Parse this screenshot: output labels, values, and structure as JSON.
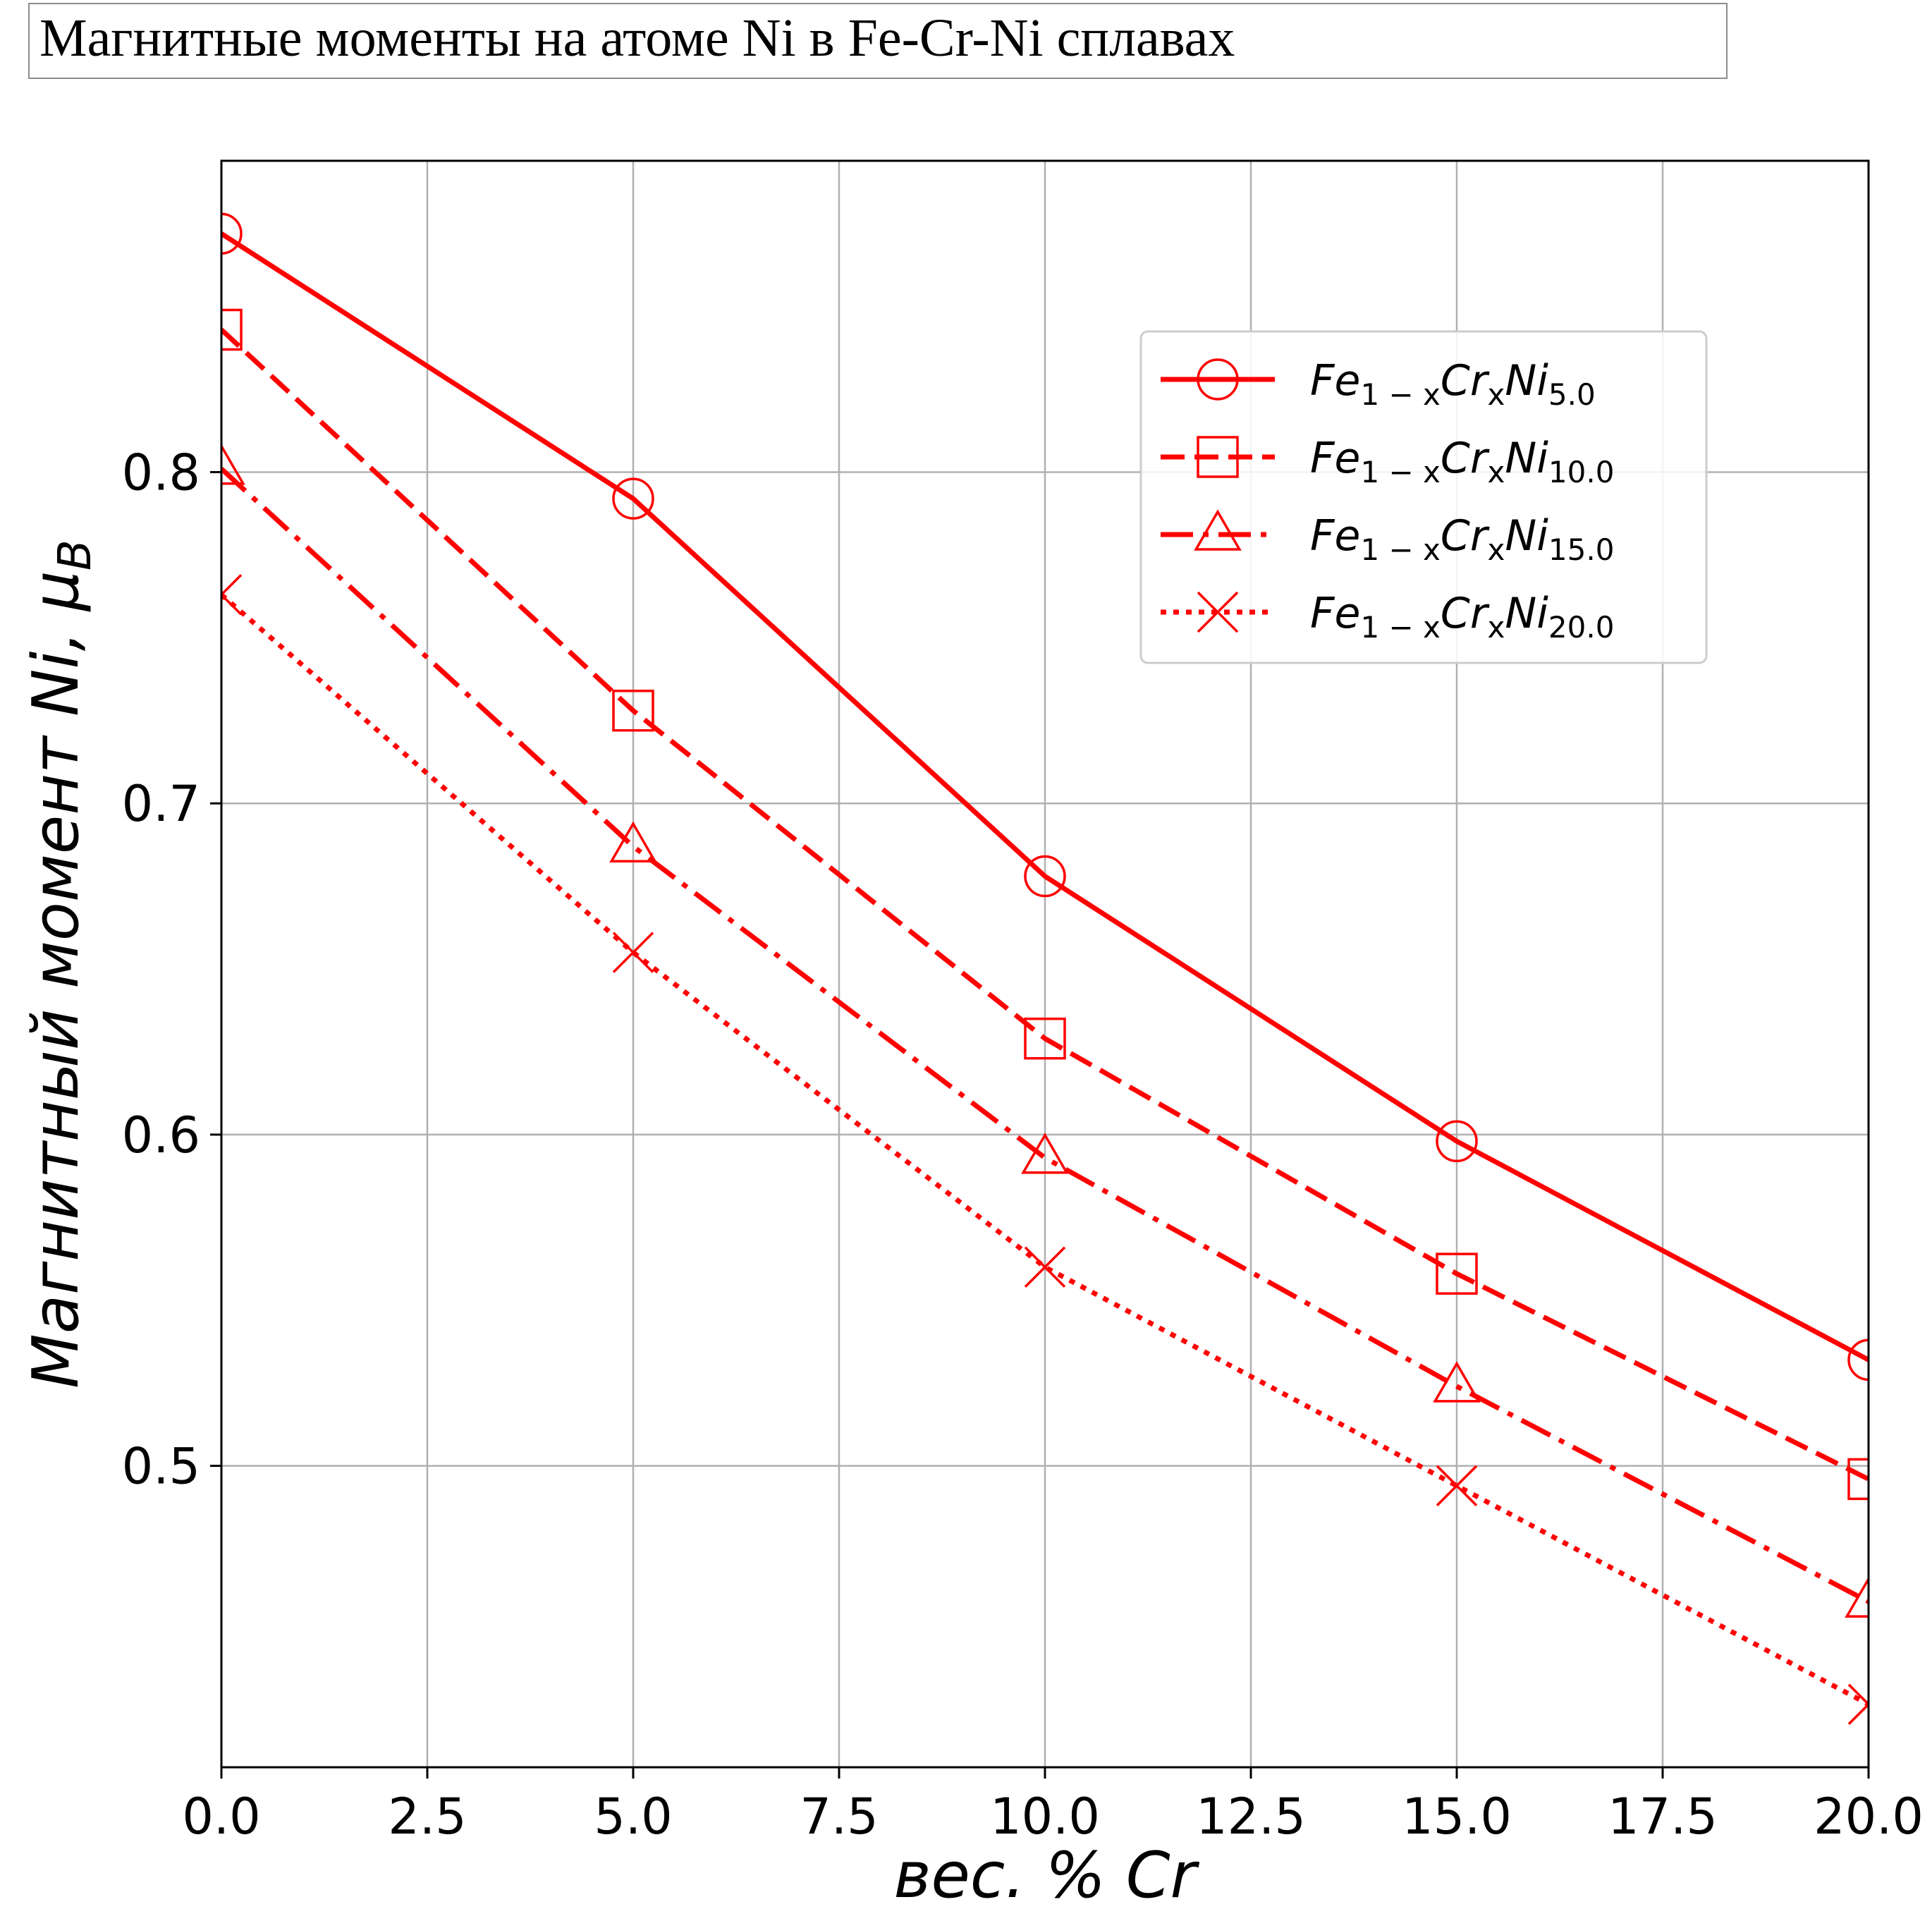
{
  "title": "Магнитные моменты на атоме Ni в Fe-Cr-Ni сплавах",
  "chart_data": {
    "type": "line",
    "title": "Магнитные моменты на атоме Ni в Fe-Cr-Ni сплавах",
    "xlabel": "вес. % Cr",
    "ylabel": "Магнитный момент Ni, μB",
    "xlim": [
      0,
      20
    ],
    "ylim": [
      0.409,
      0.894
    ],
    "xticks": [
      "0.0",
      "2.5",
      "5.0",
      "7.5",
      "10.0",
      "12.5",
      "15.0",
      "17.5",
      "20.0"
    ],
    "yticks": [
      "0.5",
      "0.6",
      "0.7",
      "0.8"
    ],
    "grid": true,
    "legend_position": "top-right",
    "color": "#ff0000",
    "x": [
      0,
      5,
      10,
      15,
      20
    ],
    "series": [
      {
        "name": "Fe1−xCrxNi5.0",
        "label_base": "Fe",
        "sub1": "1 − x",
        "mid1": "Cr",
        "sub2": "x",
        "mid2": "Ni",
        "sub3": "5.0",
        "marker": "circle",
        "linestyle": "solid",
        "values": [
          0.872,
          0.792,
          0.678,
          0.598,
          0.532
        ]
      },
      {
        "name": "Fe1−xCrxNi10.0",
        "label_base": "Fe",
        "sub1": "1 − x",
        "mid1": "Cr",
        "sub2": "x",
        "mid2": "Ni",
        "sub3": "10.0",
        "marker": "square",
        "linestyle": "dashed",
        "values": [
          0.843,
          0.728,
          0.629,
          0.558,
          0.496
        ]
      },
      {
        "name": "Fe1−xCrxNi15.0",
        "label_base": "Fe",
        "sub1": "1 − x",
        "mid1": "Cr",
        "sub2": "x",
        "mid2": "Ni",
        "sub3": "15.0",
        "marker": "triangle",
        "linestyle": "dashdot",
        "values": [
          0.801,
          0.687,
          0.593,
          0.524,
          0.459
        ]
      },
      {
        "name": "Fe1−xCrxNi20.0",
        "label_base": "Fe",
        "sub1": "1 − x",
        "mid1": "Cr",
        "sub2": "x",
        "mid2": "Ni",
        "sub3": "20.0",
        "marker": "x",
        "linestyle": "dotted",
        "values": [
          0.763,
          0.655,
          0.56,
          0.494,
          0.428
        ]
      }
    ]
  }
}
